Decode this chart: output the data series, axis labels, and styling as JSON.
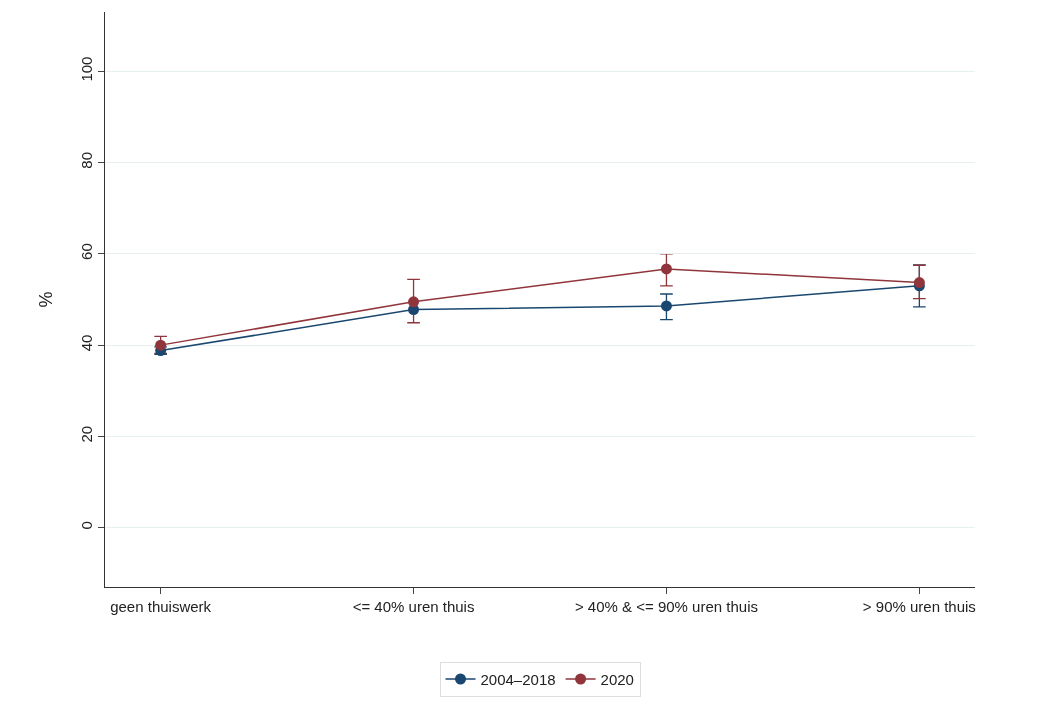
{
  "chart_data": {
    "type": "line",
    "ylabel": "%",
    "categories": [
      "geen thuiswerk",
      "<= 40% uren thuis",
      "> 40% & <= 90% uren thuis",
      "> 90% uren thuis"
    ],
    "series": [
      {
        "name": "2004–2018",
        "color": "#1a476f",
        "values": [
          38.8,
          47.8,
          48.6,
          53.0
        ],
        "errors": [
          [
            38.0,
            39.6
          ],
          null,
          [
            45.6,
            51.2
          ],
          [
            48.4,
            57.6
          ]
        ]
      },
      {
        "name": "2020",
        "color": "#90353b",
        "values": [
          40.0,
          49.5,
          56.7,
          53.7
        ],
        "errors": [
          [
            38.2,
            41.9
          ],
          [
            44.9,
            54.4
          ],
          [
            53.0,
            60.0
          ],
          [
            50.2,
            57.5
          ]
        ]
      }
    ],
    "ylim": [
      -13,
      113
    ],
    "yticks": [
      0,
      20,
      40,
      60,
      80,
      100
    ],
    "grid": "y",
    "legend": "bottom",
    "marker": "circle",
    "line_style": "solid"
  }
}
